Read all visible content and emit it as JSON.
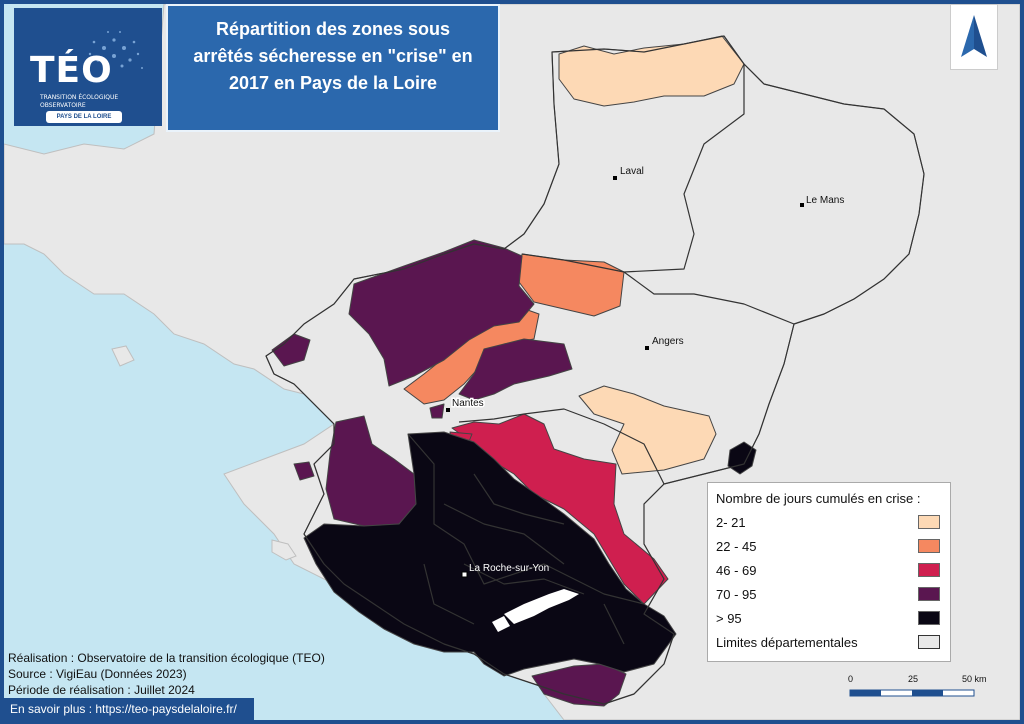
{
  "title": "Répartition des zones sous arrêtés sécheresse en \"crise\" en 2017 en Pays de la Loire",
  "logo": {
    "name": "TÉO",
    "sub1": "TRANSITION ÉCOLOGIQUE",
    "sub2": "OBSERVATOIRE",
    "region": "PAYS DE LA LOIRE"
  },
  "north_arrow": "north-arrow",
  "cities": [
    {
      "name": "Laval"
    },
    {
      "name": "Le Mans"
    },
    {
      "name": "Angers"
    },
    {
      "name": "Nantes"
    },
    {
      "name": "La Roche-sur-Yon"
    }
  ],
  "legend": {
    "title": "Nombre de jours cumulés en crise :",
    "classes": [
      {
        "label": "2- 21",
        "color": "#fdd9b5"
      },
      {
        "label": "22 - 45",
        "color": "#f58860"
      },
      {
        "label": "46 - 69",
        "color": "#cf1f4f"
      },
      {
        "label": "70 - 95",
        "color": "#5a1650"
      },
      {
        "label": "> 95",
        "color": "#0a0714"
      }
    ],
    "boundary_label": "Limites départementales"
  },
  "scalebar": {
    "labels": [
      "0",
      "25",
      "50 km"
    ]
  },
  "credits": {
    "line1": "Réalisation : Observatoire de la transition écologique (TEO)",
    "line2": "Source : VigiEau (Données 2023)",
    "line3": "Période de réalisation : Juillet 2024"
  },
  "footer": "En savoir plus : https://teo-paysdelaloire.fr/",
  "colors": {
    "frame": "#1f4f8f",
    "sea": "#c5e6f2",
    "land_outside": "#e8e8e8",
    "title_bg": "#2b68ad"
  }
}
